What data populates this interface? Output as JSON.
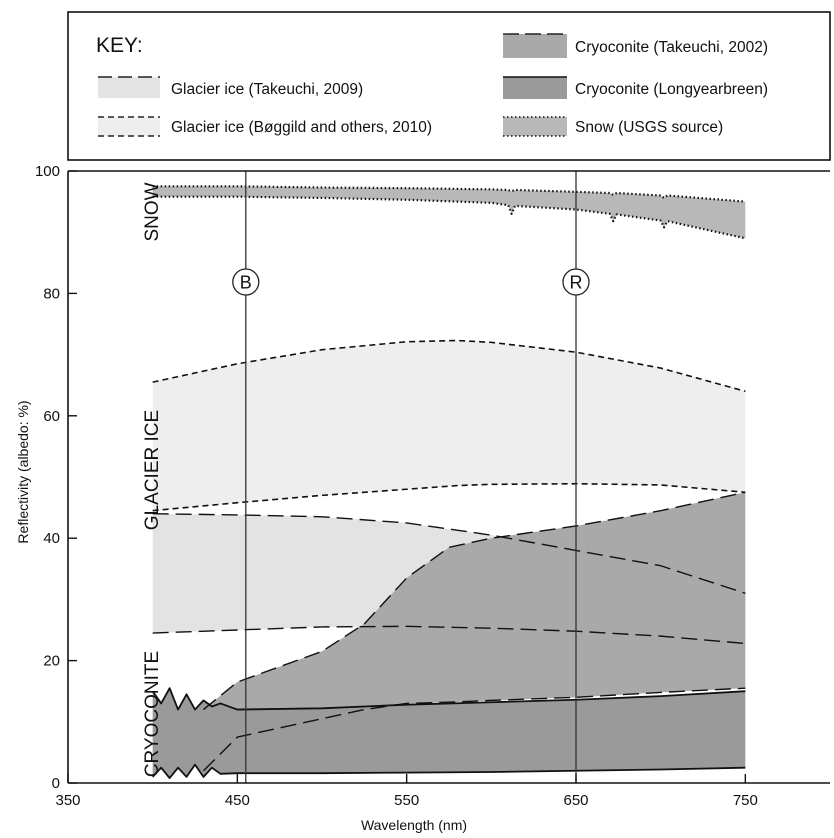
{
  "chart_data": {
    "type": "area",
    "xlabel": "Wavelength (nm)",
    "ylabel": "Reflectivity (albedo: %)",
    "xlim": [
      350,
      800
    ],
    "ylim": [
      0,
      100
    ],
    "x_ticks": [
      350,
      450,
      550,
      650,
      750
    ],
    "y_ticks": [
      0,
      20,
      40,
      60,
      80,
      100
    ],
    "key": {
      "title": "KEY:",
      "entries": [
        {
          "id": "gi_t2009",
          "label": "Glacier ice (Takeuchi, 2009)",
          "fill": "#e3e3e3",
          "line": "long-dash"
        },
        {
          "id": "gi_b2010",
          "label": "Glacier ice  (Bøggild and others, 2010)",
          "fill": "#eeeeee",
          "line": "short-dash"
        },
        {
          "id": "cry_t2002",
          "label": "Cryoconite (Takeuchi, 2002)",
          "fill": "#a9a9a9",
          "line": "long-dash"
        },
        {
          "id": "cry_lyb",
          "label": "Cryoconite (Longyearbreen)",
          "fill": "#9a9a9a",
          "line": "solid"
        },
        {
          "id": "snow_usgs",
          "label": "Snow (USGS source)",
          "fill": "#b8b8b8",
          "line": "dotted"
        }
      ]
    },
    "band_labels": [
      "SNOW",
      "GLACIER ICE",
      "CRYOCONITE"
    ],
    "vertical_markers": [
      {
        "label": "B",
        "x": 455
      },
      {
        "label": "R",
        "x": 650
      }
    ],
    "series": [
      {
        "name": "Snow (USGS source)",
        "x": [
          400,
          450,
          500,
          550,
          600,
          610,
          612,
          614,
          650,
          670,
          672,
          674,
          700,
          702,
          704,
          750
        ],
        "upper": [
          97.5,
          97.5,
          97.3,
          97.2,
          97.0,
          96.9,
          96.7,
          96.9,
          96.6,
          96.4,
          96.1,
          96.4,
          96.0,
          95.6,
          96.0,
          95.0
        ],
        "lower": [
          95.8,
          95.8,
          95.6,
          95.3,
          94.8,
          94.4,
          93.0,
          94.3,
          93.7,
          93.0,
          91.8,
          92.9,
          91.9,
          90.8,
          91.8,
          89.0
        ]
      },
      {
        "name": "Glacier ice  (Bøggild and others, 2010)",
        "x": [
          400,
          450,
          500,
          550,
          580,
          600,
          650,
          700,
          750
        ],
        "upper": [
          65.5,
          68.5,
          70.8,
          72.1,
          72.3,
          72.0,
          70.4,
          67.8,
          64.0
        ],
        "lower": [
          44.5,
          45.8,
          47.0,
          48.0,
          48.6,
          48.8,
          48.9,
          48.7,
          47.5
        ]
      },
      {
        "name": "Glacier ice (Takeuchi, 2009)",
        "x": [
          400,
          450,
          500,
          550,
          600,
          650,
          700,
          750
        ],
        "upper": [
          44.0,
          43.8,
          43.5,
          42.5,
          40.5,
          38.0,
          35.5,
          31.0
        ],
        "lower": [
          24.5,
          25.0,
          25.5,
          25.6,
          25.3,
          24.8,
          24.0,
          22.8
        ]
      },
      {
        "name": "Cryoconite (Takeuchi, 2002)",
        "x": [
          430,
          450,
          500,
          525,
          550,
          575,
          600,
          650,
          700,
          750
        ],
        "upper": [
          12.0,
          16.5,
          21.5,
          26.0,
          33.5,
          38.5,
          40.0,
          42.0,
          44.5,
          47.5
        ],
        "lower": [
          2.0,
          7.5,
          10.5,
          12.0,
          13.0,
          13.2,
          13.5,
          14.0,
          14.8,
          15.5
        ]
      },
      {
        "name": "Cryoconite (Longyearbreen)",
        "x": [
          400,
          405,
          410,
          415,
          420,
          425,
          430,
          435,
          440,
          450,
          500,
          550,
          600,
          650,
          700,
          750
        ],
        "upper": [
          15.0,
          13.0,
          15.5,
          12.0,
          14.5,
          12.0,
          13.5,
          12.5,
          13.0,
          12.0,
          12.2,
          12.8,
          13.2,
          13.6,
          14.2,
          15.0
        ],
        "lower": [
          1.0,
          2.5,
          0.8,
          2.5,
          1.0,
          3.0,
          1.0,
          2.5,
          1.5,
          1.6,
          1.6,
          1.7,
          1.8,
          2.0,
          2.2,
          2.5
        ]
      }
    ]
  }
}
